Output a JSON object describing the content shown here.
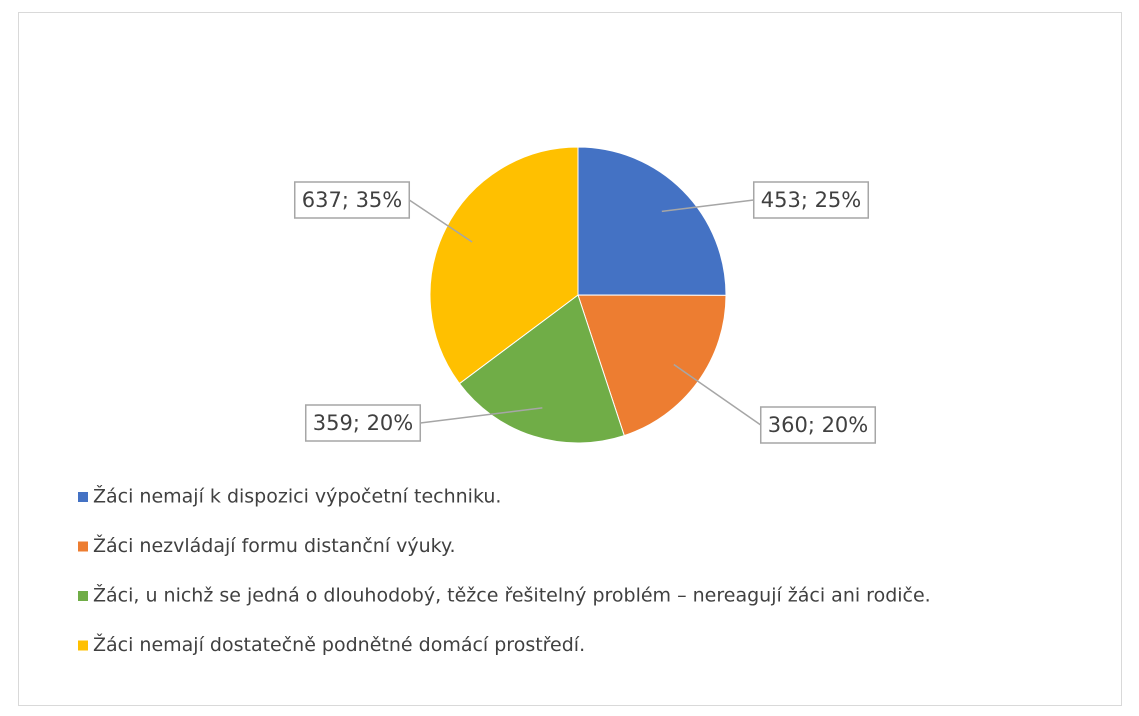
{
  "chart_data": {
    "type": "pie",
    "categories": [
      "Žáci nemají k dispozici výpočetní techniku.",
      "Žáci nezvládají formu distanční výuky.",
      "Žáci, u nichž se jedná o dlouhodobý, těžce řešitelný problém – nereagují žáci ani rodiče.",
      "Žáci nemají dostatečně podnětné domácí prostředí."
    ],
    "values": [
      453,
      360,
      359,
      637
    ],
    "value_labels": [
      "453; 25%",
      "360; 20%",
      "359; 20%",
      "637; 35%"
    ],
    "colors": [
      "#4472c4",
      "#ed7d31",
      "#70ad47",
      "#ffc000"
    ],
    "legend": "bottom"
  }
}
